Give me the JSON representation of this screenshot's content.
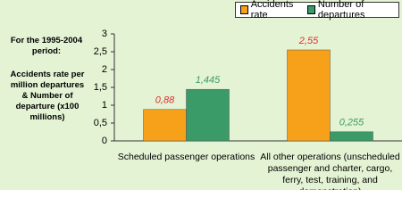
{
  "chart_data": {
    "type": "bar",
    "annotations": [
      "For the 1995-2004 period:",
      "Accidents rate per million departures & Number of departure (x100 millions)"
    ],
    "categories": [
      "Scheduled passenger operations",
      "All other operations (unscheduled passenger and charter, cargo, ferry, test, training, and demonstration)"
    ],
    "series": [
      {
        "name": "Accidents rate",
        "color": "#f7a11a",
        "label_color": "#e03030",
        "values": [
          0.88,
          2.55
        ],
        "value_labels": [
          "0,88",
          "2,55"
        ]
      },
      {
        "name": "Number of departures",
        "color": "#3a9a68",
        "label_color": "#3a9a68",
        "values": [
          1.445,
          0.255
        ],
        "value_labels": [
          "1,445",
          "0,255"
        ]
      }
    ],
    "ylim": [
      0,
      3
    ],
    "yticks": [
      0,
      {
        "value": 0.5,
        "label": "0,5"
      },
      1,
      {
        "value": 1.5,
        "label": "1,5"
      },
      2,
      {
        "value": 2.5,
        "label": "2,5"
      },
      3
    ],
    "grid": false,
    "legend": "top-right"
  }
}
